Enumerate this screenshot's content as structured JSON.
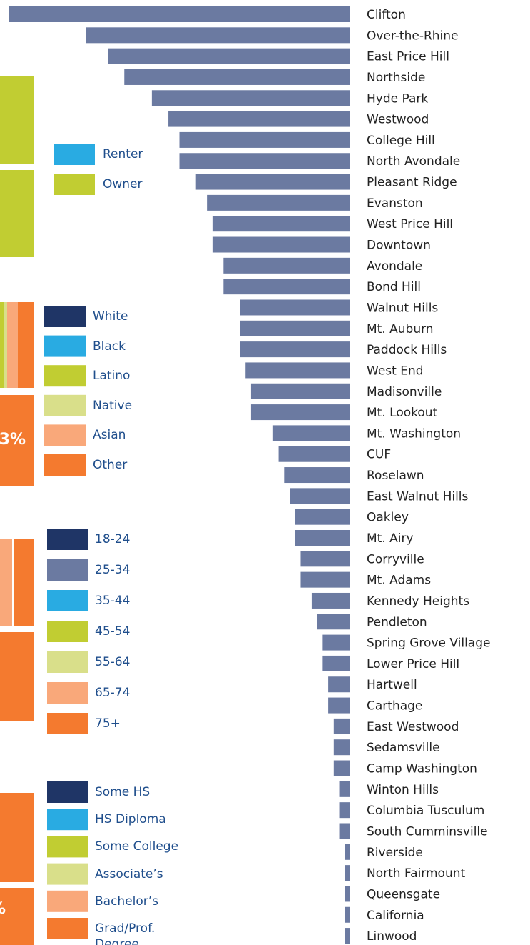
{
  "chart_data": {
    "type": "bar",
    "orientation": "horizontal",
    "color": "#6b7aa1",
    "categories": [
      "Clifton",
      "Over-the-Rhine",
      "East Price Hill",
      "Northside",
      "Hyde Park",
      "Westwood",
      "College Hill",
      "North Avondale",
      "Pleasant Ridge",
      "Evanston",
      "West Price Hill",
      "Downtown",
      "Avondale",
      "Bond Hill",
      "Walnut Hills",
      "Mt. Auburn",
      "Paddock Hills",
      "West End",
      "Madisonville",
      "Mt. Lookout",
      "Mt. Washington",
      "CUF",
      "Roselawn",
      "East Walnut Hills",
      "Oakley",
      "Mt. Airy",
      "Corryville",
      "Mt. Adams",
      "Kennedy Heights",
      "Pendleton",
      "Spring Grove Village",
      "Lower Price Hill",
      "Hartwell",
      "Carthage",
      "East Westwood",
      "Sedamsville",
      "Camp Washington",
      "Winton Hills",
      "Columbia Tusculum",
      "South Cumminsville",
      "Riverside",
      "North Fairmount",
      "Queensgate",
      "California",
      "Linwood"
    ],
    "values": [
      62,
      48,
      44,
      41,
      36,
      33,
      31,
      31,
      28,
      26,
      25,
      25,
      23,
      23,
      20,
      20,
      20,
      19,
      18,
      18,
      14,
      13,
      12,
      11,
      10,
      10,
      9,
      9,
      7,
      6,
      5,
      5,
      4,
      4,
      3,
      3,
      3,
      2,
      2,
      2,
      1,
      1,
      1,
      1,
      1
    ]
  },
  "legends": [
    {
      "items": [
        {
          "name": "Renter",
          "color": "#29abe2"
        },
        {
          "name": "Owner",
          "color": "#c1cd32"
        }
      ]
    },
    {
      "items": [
        {
          "name": "White",
          "color": "#1f3566"
        },
        {
          "name": "Black",
          "color": "#29abe2"
        },
        {
          "name": "Latino",
          "color": "#c1cd32"
        },
        {
          "name": "Native",
          "color": "#d9df8a"
        },
        {
          "name": "Asian",
          "color": "#f9a87a"
        },
        {
          "name": "Other",
          "color": "#f47a2f"
        }
      ]
    },
    {
      "items": [
        {
          "name": "18-24",
          "color": "#1f3566"
        },
        {
          "name": "25-34",
          "color": "#6b7aa1"
        },
        {
          "name": "35-44",
          "color": "#29abe2"
        },
        {
          "name": "45-54",
          "color": "#c1cd32"
        },
        {
          "name": "55-64",
          "color": "#d9df8a"
        },
        {
          "name": "65-74",
          "color": "#f9a87a"
        },
        {
          "name": "75+",
          "color": "#f47a2f"
        }
      ]
    },
    {
      "items": [
        {
          "name": "Some HS",
          "color": "#1f3566"
        },
        {
          "name": "HS Diploma",
          "color": "#29abe2"
        },
        {
          "name": "Some College",
          "color": "#c1cd32"
        },
        {
          "name": "Associate’s",
          "color": "#d9df8a"
        },
        {
          "name": "Bachelor’s",
          "color": "#f9a87a"
        },
        {
          "name": "Grad/Prof. Degree",
          "color": "#f47a2f"
        }
      ]
    }
  ],
  "annotations": [
    "3%",
    "%"
  ]
}
